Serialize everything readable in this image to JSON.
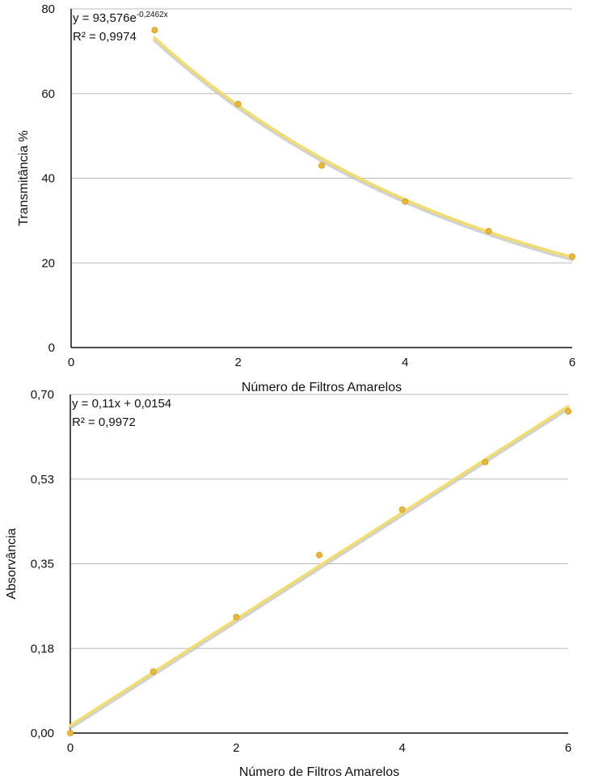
{
  "chart_data": [
    {
      "type": "scatter",
      "xlabel": "Número de Filtros Amarelos",
      "ylabel": "Transmitância %",
      "xlim": [
        0,
        6
      ],
      "ylim": [
        0,
        80
      ],
      "x_ticks": [
        "0",
        "2",
        "4",
        "6"
      ],
      "y_ticks": [
        "0",
        "20",
        "40",
        "60",
        "80"
      ],
      "grid": true,
      "points": {
        "x": [
          1,
          2,
          3,
          4,
          5,
          6
        ],
        "y": [
          75,
          57.5,
          43,
          34.5,
          27.5,
          21.5
        ]
      },
      "trendline": {
        "type": "exponential",
        "a": 93.576,
        "b": -0.2462,
        "x_range": [
          1,
          6
        ],
        "equation_base": "y = 93,576e",
        "equation_exponent": "-0,2462x",
        "r2_text": "R² = 0,9974"
      },
      "colors": {
        "marker": "#E8B83A",
        "trendline": "#F1DD6C",
        "shadow": "#BDBDBD",
        "grid": "#BBBBBB",
        "axis": "#111111"
      }
    },
    {
      "type": "scatter",
      "xlabel": "Número de Filtros Amarelos",
      "ylabel": "Absorvância",
      "xlim": [
        0,
        6
      ],
      "ylim": [
        0,
        0.7
      ],
      "x_ticks": [
        "0",
        "2",
        "4",
        "6"
      ],
      "y_ticks": [
        "0,00",
        "0,18",
        "0,35",
        "0,53",
        "0,70"
      ],
      "grid": true,
      "points": {
        "x": [
          0,
          1,
          2,
          3,
          4,
          5,
          6
        ],
        "y": [
          0,
          0.127,
          0.24,
          0.368,
          0.462,
          0.56,
          0.665
        ]
      },
      "trendline": {
        "type": "linear",
        "m": 0.11,
        "c": 0.0154,
        "x_range": [
          0,
          6
        ],
        "equation": "y = 0,11x + 0,0154",
        "r2_text": "R² = 0,9972"
      },
      "colors": {
        "marker": "#E8B83A",
        "trendline": "#F1DD6C",
        "shadow": "#BDBDBD",
        "grid": "#BBBBBB",
        "axis": "#111111"
      }
    }
  ]
}
